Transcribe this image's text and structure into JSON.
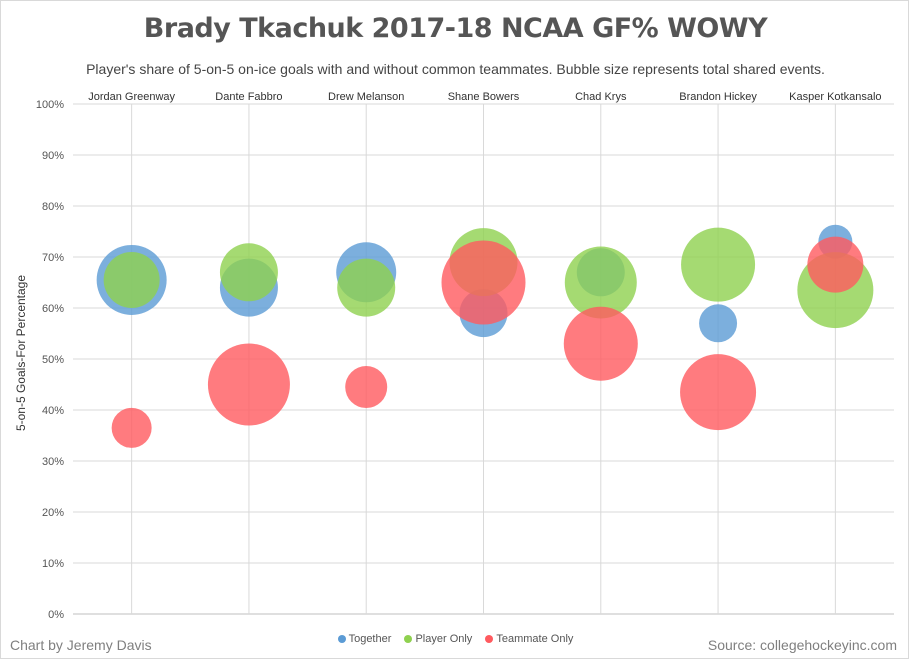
{
  "title": "Brady Tkachuk 2017-18 NCAA GF% WOWY",
  "subtitle": "Player's share of 5-on-5 on-ice goals with and without common teammates. Bubble size represents total shared events.",
  "credit": "Chart by Jeremy Davis",
  "source": "Source: collegehockeyinc.com",
  "chart_data": {
    "type": "scatter",
    "title": "Brady Tkachuk 2017-18 NCAA GF% WOWY",
    "subtitle": "Player's share of 5-on-5 on-ice goals with and without common teammates. Bubble size represents total shared events.",
    "xlabel": "",
    "ylabel": "5-on-5 Goals-For Percentage",
    "ylim": [
      0,
      100
    ],
    "yticks": [
      "0%",
      "10%",
      "20%",
      "30%",
      "40%",
      "50%",
      "60%",
      "70%",
      "80%",
      "90%",
      "100%"
    ],
    "categories": [
      "Jordan Greenway",
      "Dante Fabbro",
      "Drew Melanson",
      "Shane Bowers",
      "Chad Krys",
      "Brandon Hickey",
      "Kasper Kotkansalo"
    ],
    "grid": true,
    "legend_position": "bottom",
    "series": [
      {
        "name": "Together",
        "color": "#5b9bd5",
        "values": [
          65.5,
          64,
          67,
          59,
          67,
          57,
          73
        ],
        "sizes": [
          35,
          29,
          30,
          24,
          24,
          19,
          17
        ]
      },
      {
        "name": "Player Only",
        "color": "#8fd14f",
        "values": [
          65.5,
          67,
          64,
          69,
          65,
          68.5,
          63.5
        ],
        "sizes": [
          28,
          29,
          29,
          34,
          36,
          37,
          38
        ]
      },
      {
        "name": "Teammate Only",
        "color": "#ff5a5f",
        "values": [
          36.5,
          45,
          44.5,
          65,
          53,
          43.5,
          68.5
        ],
        "sizes": [
          20,
          41,
          21,
          42,
          37,
          38,
          28
        ]
      }
    ]
  }
}
